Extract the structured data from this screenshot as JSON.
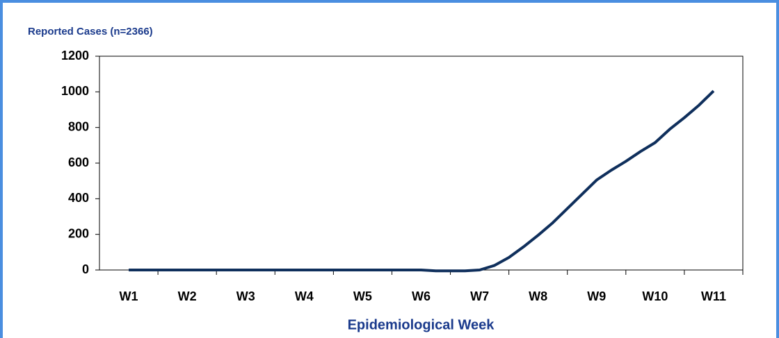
{
  "chart_data": {
    "type": "line",
    "title": "Reported Cases (n=2366)",
    "x_label": "Epidemiological Week",
    "x": [
      1,
      2,
      3,
      4,
      5,
      6,
      6.25,
      6.5,
      6.75,
      7,
      7.25,
      7.5,
      7.75,
      8,
      8.25,
      8.5,
      8.75,
      9,
      9.25,
      9.5,
      9.75,
      10,
      10.25,
      10.5,
      10.75,
      11
    ],
    "series": [
      {
        "name": "Reported Cases",
        "color": "#0f2f5c",
        "values": [
          0,
          0,
          0,
          0,
          0,
          0,
          -5,
          -5,
          -5,
          0,
          25,
          70,
          130,
          195,
          265,
          345,
          425,
          505,
          560,
          610,
          665,
          715,
          790,
          855,
          925,
          1005
        ]
      }
    ],
    "xlim": [
      0.5,
      11.5
    ],
    "xticks": [
      {
        "value": 1,
        "label": "W1"
      },
      {
        "value": 2,
        "label": "W2"
      },
      {
        "value": 3,
        "label": "W3"
      },
      {
        "value": 4,
        "label": "W4"
      },
      {
        "value": 5,
        "label": "W5"
      },
      {
        "value": 6,
        "label": "W6"
      },
      {
        "value": 7,
        "label": "W7"
      },
      {
        "value": 8,
        "label": "W8"
      },
      {
        "value": 9,
        "label": "W9"
      },
      {
        "value": 10,
        "label": "W10"
      },
      {
        "value": 11,
        "label": "W11"
      }
    ],
    "ylim": [
      0,
      1200
    ],
    "yticks": [
      0,
      200,
      400,
      600,
      800,
      1000,
      1200
    ],
    "grid": false
  }
}
